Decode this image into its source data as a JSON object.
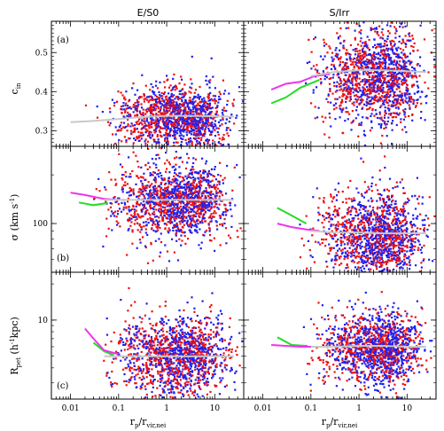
{
  "figure": {
    "column_titles": [
      "E/S0",
      "S/Irr"
    ],
    "xlabel": {
      "main": "r",
      "sub1": "p",
      "sep": "/r",
      "sub2": "vir,nei"
    },
    "row_labels": [
      {
        "main": "c",
        "sub": "in",
        "rest": ""
      },
      {
        "main": "σ (km s",
        "sup": "-1",
        "rest": ")"
      },
      {
        "main": "R",
        "sub": "pet",
        "rest": " (h",
        "sup": "-1",
        "rest2": "kpc)"
      }
    ],
    "panel_tags": [
      "(a)",
      "(b)",
      "(c)"
    ]
  },
  "chart_data": [
    {
      "id": "a-left",
      "type": "scatter",
      "column": "E/S0",
      "row": "(a)",
      "ylabel": "c_in",
      "xscale": "log",
      "xlim": [
        0.004,
        40
      ],
      "ylim": [
        0.26,
        0.58
      ],
      "yticks": [
        0.3,
        0.4,
        0.5
      ],
      "ytick_labels": [
        "0.3",
        "0.4",
        "0.5"
      ],
      "cloud": {
        "x_center_log10": 0.1,
        "x_spread_log10": 0.7,
        "x_min": 0.01,
        "x_max": 30,
        "y_center": 0.335,
        "y_spread": 0.04
      },
      "series": [
        {
          "name": "",
          "color": "#2020ee",
          "role": "points"
        },
        {
          "name": "",
          "color": "#ee1010",
          "role": "points"
        },
        {
          "name": "",
          "color": "#c8c8c8",
          "role": "median",
          "x": [
            0.01,
            0.03,
            0.1,
            0.3,
            1,
            3,
            10,
            25
          ],
          "y": [
            0.322,
            0.325,
            0.33,
            0.335,
            0.338,
            0.338,
            0.337,
            0.336
          ]
        }
      ]
    },
    {
      "id": "a-right",
      "type": "scatter",
      "column": "S/Irr",
      "row": "(a)",
      "ylabel": "c_in",
      "xscale": "log",
      "xlim": [
        0.004,
        40
      ],
      "ylim": [
        0.26,
        0.58
      ],
      "yticks": [
        0.3,
        0.4,
        0.5
      ],
      "ytick_labels": [
        "",
        "",
        ""
      ],
      "cloud": {
        "x_center_log10": 0.3,
        "x_spread_log10": 0.6,
        "x_min": 0.015,
        "x_max": 30,
        "y_center": 0.44,
        "y_spread": 0.06
      },
      "series": [
        {
          "name": "",
          "color": "#2020ee",
          "role": "points"
        },
        {
          "name": "",
          "color": "#ee1010",
          "role": "points"
        },
        {
          "name": "",
          "color": "#22dd22",
          "role": "median",
          "x": [
            0.015,
            0.03,
            0.06,
            0.15
          ],
          "y": [
            0.37,
            0.385,
            0.41,
            0.43
          ]
        },
        {
          "name": "",
          "color": "#ee33ee",
          "role": "median",
          "x": [
            0.015,
            0.03,
            0.06,
            0.12,
            0.25
          ],
          "y": [
            0.405,
            0.42,
            0.425,
            0.44,
            0.445
          ]
        },
        {
          "name": "",
          "color": "#c8c8c8",
          "role": "median",
          "x": [
            0.1,
            0.3,
            1,
            3,
            10,
            25
          ],
          "y": [
            0.44,
            0.45,
            0.455,
            0.455,
            0.452,
            0.45
          ]
        }
      ]
    },
    {
      "id": "b-left",
      "type": "scatter",
      "column": "E/S0",
      "row": "(b)",
      "ylabel": "sigma (km s^-1)",
      "xscale": "log",
      "yscale": "log",
      "xlim": [
        0.004,
        40
      ],
      "ylim": [
        50,
        300
      ],
      "yticks": [
        100
      ],
      "ytick_labels": [
        "100"
      ],
      "cloud": {
        "x_center_log10": 0.1,
        "x_spread_log10": 0.7,
        "x_min": 0.01,
        "x_max": 30,
        "y_center": 140,
        "y_spread": 0.12
      },
      "series": [
        {
          "name": "",
          "color": "#2020ee",
          "role": "points"
        },
        {
          "name": "",
          "color": "#ee1010",
          "role": "points"
        },
        {
          "name": "",
          "color": "#22dd22",
          "role": "median",
          "x": [
            0.015,
            0.03,
            0.06
          ],
          "y": [
            135,
            130,
            134
          ]
        },
        {
          "name": "",
          "color": "#ee33ee",
          "role": "median",
          "x": [
            0.01,
            0.02,
            0.05,
            0.1
          ],
          "y": [
            155,
            150,
            142,
            140
          ]
        },
        {
          "name": "",
          "color": "#c8c8c8",
          "role": "median",
          "x": [
            0.05,
            0.1,
            0.3,
            1,
            3,
            10,
            25
          ],
          "y": [
            140,
            140,
            140,
            140,
            140,
            140,
            140
          ]
        }
      ]
    },
    {
      "id": "b-right",
      "type": "scatter",
      "column": "S/Irr",
      "row": "(b)",
      "ylabel": "sigma (km s^-1)",
      "xscale": "log",
      "yscale": "log",
      "xlim": [
        0.004,
        40
      ],
      "ylim": [
        50,
        300
      ],
      "yticks": [
        100
      ],
      "ytick_labels": [
        ""
      ],
      "cloud": {
        "x_center_log10": 0.3,
        "x_spread_log10": 0.6,
        "x_min": 0.015,
        "x_max": 30,
        "y_center": 85,
        "y_spread": 0.14
      },
      "series": [
        {
          "name": "",
          "color": "#2020ee",
          "role": "points"
        },
        {
          "name": "",
          "color": "#ee1010",
          "role": "points"
        },
        {
          "name": "",
          "color": "#22dd22",
          "role": "median",
          "x": [
            0.02,
            0.04,
            0.08
          ],
          "y": [
            125,
            112,
            100
          ]
        },
        {
          "name": "",
          "color": "#ee33ee",
          "role": "median",
          "x": [
            0.02,
            0.04,
            0.08,
            0.15
          ],
          "y": [
            100,
            95,
            92,
            90
          ]
        },
        {
          "name": "",
          "color": "#c8c8c8",
          "role": "median",
          "x": [
            0.1,
            0.3,
            1,
            3,
            10,
            25
          ],
          "y": [
            90,
            88,
            88,
            87,
            87,
            87
          ]
        }
      ]
    },
    {
      "id": "c-left",
      "type": "scatter",
      "column": "E/S0",
      "row": "(c)",
      "ylabel": "R_pet (h^-1 kpc)",
      "xscale": "log",
      "yscale": "log",
      "xlim": [
        0.004,
        40
      ],
      "ylim": [
        2.2,
        25
      ],
      "yticks": [
        10
      ],
      "ytick_labels": [
        "10"
      ],
      "cloud": {
        "x_center_log10": 0.1,
        "x_spread_log10": 0.7,
        "x_min": 0.01,
        "x_max": 30,
        "y_center": 5,
        "y_spread": 0.17
      },
      "series": [
        {
          "name": "",
          "color": "#2020ee",
          "role": "points"
        },
        {
          "name": "",
          "color": "#ee1010",
          "role": "points"
        },
        {
          "name": "",
          "color": "#22dd22",
          "role": "median",
          "x": [
            0.03,
            0.05,
            0.08
          ],
          "y": [
            6.5,
            5.5,
            5.1
          ]
        },
        {
          "name": "",
          "color": "#ee33ee",
          "role": "median",
          "x": [
            0.02,
            0.03,
            0.05,
            0.1
          ],
          "y": [
            8.5,
            7,
            5.6,
            5.2
          ]
        },
        {
          "name": "",
          "color": "#c8c8c8",
          "role": "median",
          "x": [
            0.05,
            0.1,
            0.3,
            1,
            3,
            10,
            25
          ],
          "y": [
            5,
            5,
            5,
            5,
            5,
            5,
            5
          ]
        }
      ]
    },
    {
      "id": "c-right",
      "type": "scatter",
      "column": "S/Irr",
      "row": "(c)",
      "ylabel": "R_pet (h^-1 kpc)",
      "xscale": "log",
      "yscale": "log",
      "xlim": [
        0.004,
        40
      ],
      "ylim": [
        2.2,
        25
      ],
      "yticks": [
        10
      ],
      "ytick_labels": [
        ""
      ],
      "cloud": {
        "x_center_log10": 0.3,
        "x_spread_log10": 0.6,
        "x_min": 0.015,
        "x_max": 30,
        "y_center": 6,
        "y_spread": 0.15
      },
      "series": [
        {
          "name": "",
          "color": "#2020ee",
          "role": "points"
        },
        {
          "name": "",
          "color": "#ee1010",
          "role": "points"
        },
        {
          "name": "",
          "color": "#22dd22",
          "role": "median",
          "x": [
            0.02,
            0.04,
            0.08
          ],
          "y": [
            7.2,
            6.2,
            6.1
          ]
        },
        {
          "name": "",
          "color": "#ee33ee",
          "role": "median",
          "x": [
            0.015,
            0.03,
            0.06,
            0.12
          ],
          "y": [
            6.2,
            6.1,
            6.0,
            6.0
          ]
        },
        {
          "name": "",
          "color": "#c8c8c8",
          "role": "median",
          "x": [
            0.1,
            0.3,
            1,
            3,
            10,
            25
          ],
          "y": [
            6.0,
            6.0,
            6.1,
            6.1,
            6.0,
            6.0
          ]
        }
      ]
    }
  ],
  "x_axis": {
    "ticks": [
      0.01,
      0.1,
      1,
      10
    ],
    "tick_labels": [
      "0.01",
      "0.1",
      "1",
      "10"
    ]
  }
}
